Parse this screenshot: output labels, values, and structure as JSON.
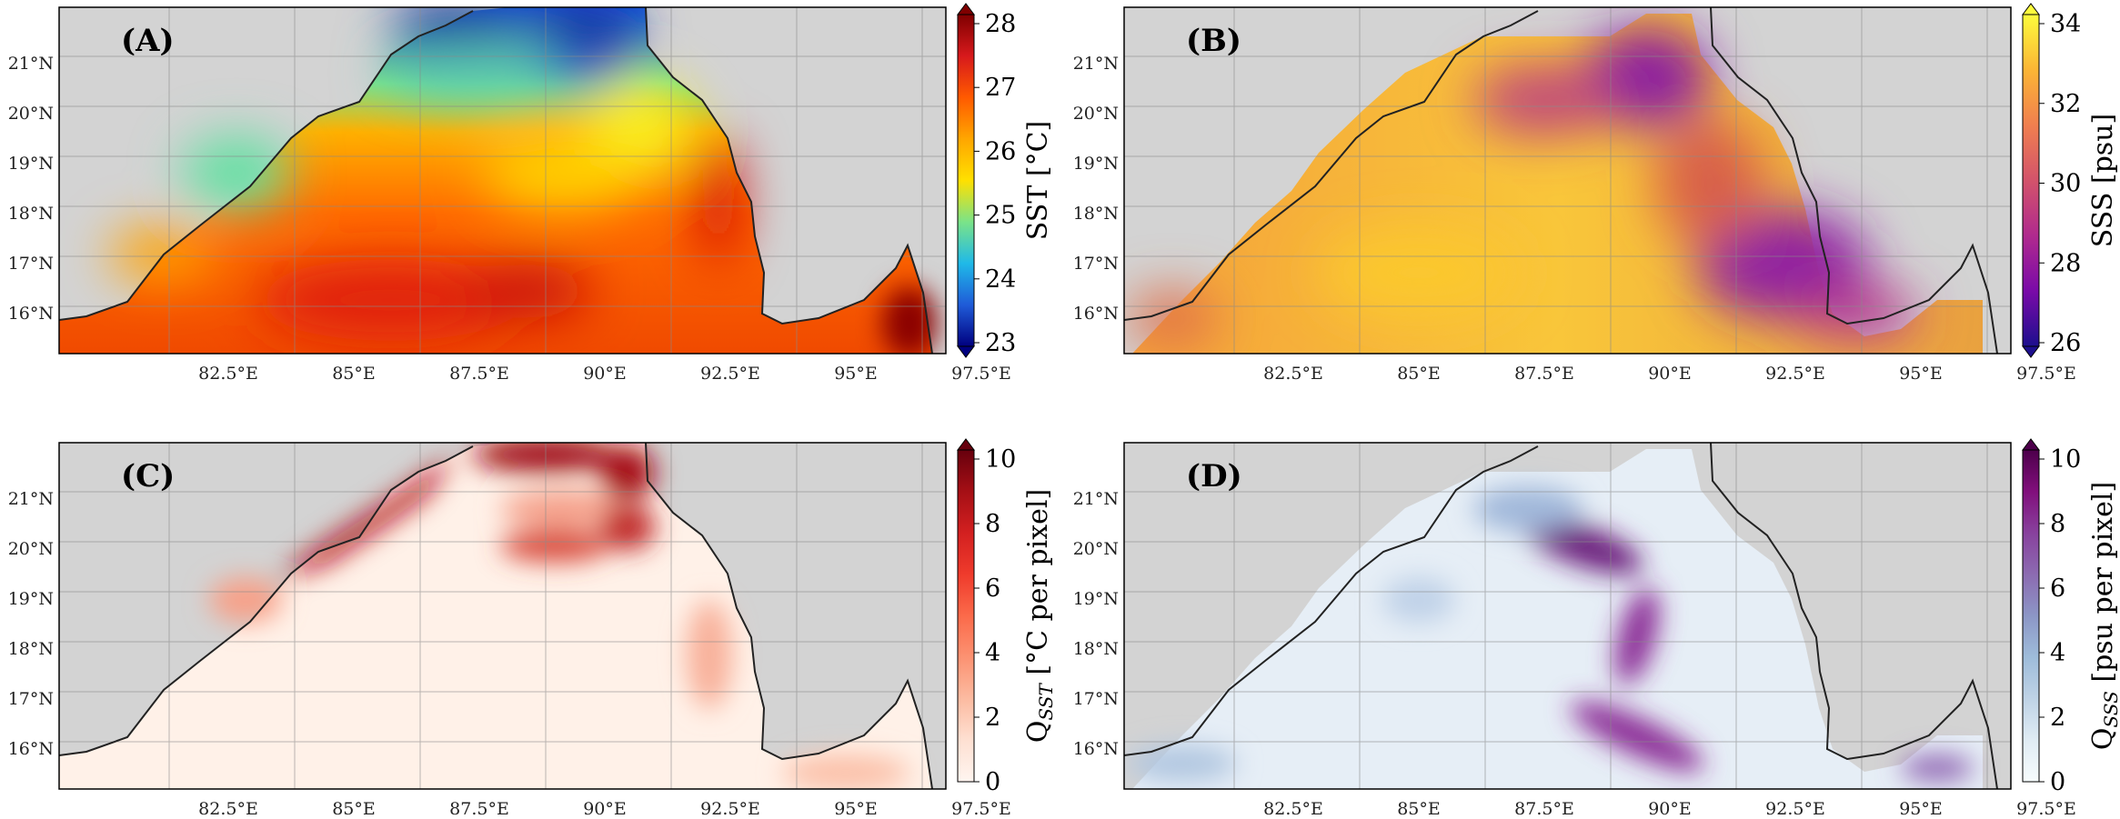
{
  "figure": {
    "panels": [
      {
        "id": "A",
        "label": "(A)",
        "variable": "SST",
        "colorbar": {
          "label": "SST [°C]",
          "ticks": [
            "28",
            "27",
            "26",
            "25",
            "24",
            "23"
          ],
          "colors": [
            "#7f0000",
            "#d7191c",
            "#ff5a00",
            "#ffa600",
            "#ffe000",
            "#7be388",
            "#1fb9e8",
            "#1f5bd8",
            "#00007f"
          ]
        }
      },
      {
        "id": "B",
        "label": "(B)",
        "variable": "SSS",
        "colorbar": {
          "label": "SSS [psu]",
          "ticks": [
            "34",
            "32",
            "30",
            "28",
            "26"
          ],
          "colors": [
            "#fcfb3c",
            "#fbb535",
            "#f07f4f",
            "#d3536b",
            "#b02a8e",
            "#7a0aa8",
            "#1d0f8e"
          ]
        }
      },
      {
        "id": "C",
        "label": "(C)",
        "variable": "Q_SST",
        "colorbar": {
          "label": "Q",
          "label_sub": "SST",
          "label_rest": " [°C per pixel]",
          "ticks": [
            "10",
            "8",
            "6",
            "4",
            "2",
            "0"
          ],
          "colors": [
            "#67000d",
            "#a50f15",
            "#d32020",
            "#ef3b2c",
            "#fb6a4a",
            "#fc9272",
            "#fcbba1",
            "#fee0d2",
            "#fff5f0"
          ]
        }
      },
      {
        "id": "D",
        "label": "(D)",
        "variable": "Q_SSS",
        "colorbar": {
          "label": "Q",
          "label_sub": "SSS",
          "label_rest": " [psu per pixel]",
          "ticks": [
            "10",
            "8",
            "6",
            "4",
            "2",
            "0"
          ],
          "colors": [
            "#4d004b",
            "#810f7c",
            "#88419d",
            "#8c6bb1",
            "#8c96c6",
            "#9ebcda",
            "#bfd3e6",
            "#e0ecf4",
            "#f7fcfd"
          ]
        }
      }
    ],
    "axes": {
      "lat_ticks": [
        "21°N",
        "20°N",
        "19°N",
        "18°N",
        "17°N",
        "16°N"
      ],
      "lon_ticks": [
        "82.5°E",
        "85°E",
        "87.5°E",
        "90°E",
        "92.5°E",
        "95°E",
        "97.5°E"
      ]
    },
    "colors": {
      "land": "#d3d3d3",
      "coast": "#222222",
      "grid": "#8a8a8a"
    }
  }
}
